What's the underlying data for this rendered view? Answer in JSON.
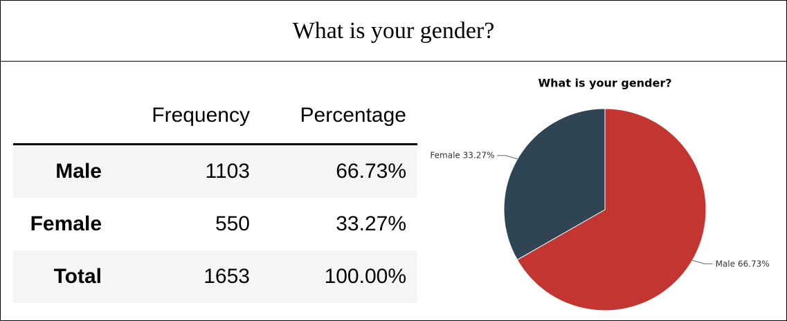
{
  "header": {
    "title": "What is your gender?"
  },
  "table": {
    "columns": [
      "Frequency",
      "Percentage"
    ],
    "rows": [
      [
        "Male",
        "1103",
        "66.73%"
      ],
      [
        "Female",
        "550",
        "33.27%"
      ],
      [
        "Total",
        "1653",
        "100.00%"
      ]
    ]
  },
  "chart_data": {
    "type": "pie",
    "title": "What is your gender?",
    "categories": [
      "Male",
      "Female"
    ],
    "values": [
      66.73,
      33.27
    ],
    "value_labels": [
      "66.73%",
      "33.27%"
    ],
    "colors": [
      "#c23531",
      "#2f4554"
    ]
  }
}
